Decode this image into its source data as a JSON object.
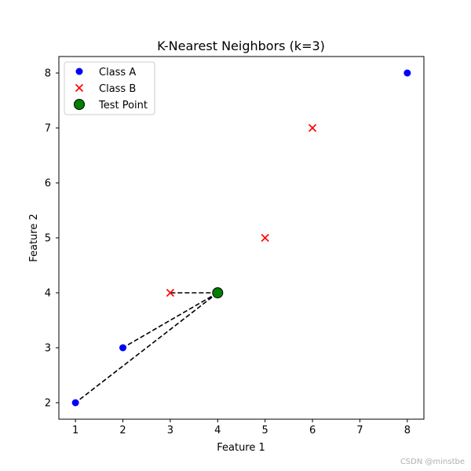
{
  "chart_data": {
    "type": "scatter",
    "title": "K-Nearest Neighbors (k=3)",
    "xlabel": "Feature 1",
    "ylabel": "Feature 2",
    "xlim": [
      0.65,
      8.35
    ],
    "ylim": [
      1.7,
      8.3
    ],
    "xticks": [
      "1",
      "2",
      "3",
      "4",
      "5",
      "6",
      "7",
      "8"
    ],
    "yticks": [
      "2",
      "3",
      "4",
      "5",
      "6",
      "7",
      "8"
    ],
    "grid": false,
    "legend_position": "top-left",
    "series": [
      {
        "name": "Class A",
        "marker": "circle",
        "color": "#0000ff",
        "points": [
          [
            1,
            2
          ],
          [
            2,
            3
          ],
          [
            8,
            8
          ]
        ]
      },
      {
        "name": "Class B",
        "marker": "x",
        "color": "#ff0000",
        "points": [
          [
            3,
            4
          ],
          [
            5,
            5
          ],
          [
            6,
            7
          ]
        ]
      },
      {
        "name": "Test Point",
        "marker": "large-circle",
        "color": "#008000",
        "edge_color": "#000000",
        "points": [
          [
            4,
            4
          ]
        ]
      }
    ],
    "neighbor_lines": {
      "style": "dashed",
      "color": "#000000",
      "from": [
        4,
        4
      ],
      "to": [
        [
          3,
          4
        ],
        [
          2,
          3
        ],
        [
          1,
          2
        ]
      ]
    }
  },
  "watermark": "CSDN @minstbe"
}
